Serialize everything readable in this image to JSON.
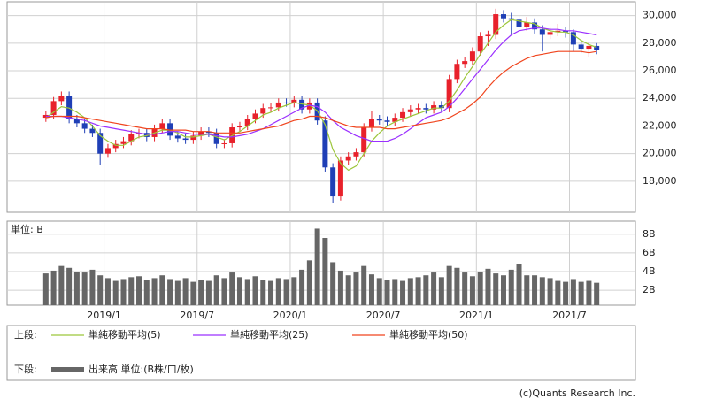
{
  "chart_data": [
    {
      "type": "candlestick",
      "up_color": "#e8212b",
      "down_color": "#1f3fb6",
      "open": [
        22600,
        22800,
        23800,
        24200,
        22500,
        22200,
        21800,
        21500,
        20000,
        20400,
        20700,
        20900,
        21400,
        21500,
        21200,
        21800,
        22200,
        21300,
        21100,
        21000,
        21300,
        21600,
        21500,
        20700,
        20750,
        21900,
        22000,
        22500,
        22900,
        23300,
        23350,
        23700,
        23650,
        23900,
        23200,
        23700,
        22400,
        19000,
        16900,
        19500,
        19800,
        20100,
        21900,
        22500,
        22400,
        22300,
        22600,
        23000,
        23200,
        23300,
        23200,
        23500,
        23300,
        25400,
        26500,
        26700,
        27400,
        28500,
        28600,
        30100,
        29800,
        29700,
        29200,
        29500,
        29000,
        28600,
        28800,
        28900,
        28800,
        27900,
        27600,
        27800
      ],
      "high": [
        23100,
        24100,
        24500,
        24500,
        22800,
        22500,
        22100,
        21800,
        20700,
        21000,
        21200,
        21700,
        21800,
        21800,
        22100,
        22500,
        22500,
        21600,
        21400,
        21600,
        21900,
        21900,
        21800,
        21050,
        22200,
        22300,
        22800,
        23200,
        23600,
        23650,
        24000,
        24000,
        24200,
        24200,
        24000,
        24000,
        22700,
        19300,
        19800,
        20100,
        20400,
        22200,
        23100,
        22800,
        22700,
        22900,
        23300,
        23500,
        23600,
        23600,
        23800,
        23800,
        25700,
        26800,
        27000,
        27700,
        28800,
        28900,
        30500,
        30400,
        30200,
        30000,
        29900,
        29800,
        29300,
        29100,
        29400,
        29200,
        29000,
        28200,
        28100,
        28000
      ],
      "low": [
        22300,
        22500,
        23500,
        22200,
        21900,
        21500,
        21200,
        19200,
        19700,
        20100,
        20400,
        20600,
        21100,
        20900,
        20900,
        21500,
        21000,
        20800,
        20700,
        20700,
        21000,
        21200,
        20400,
        20400,
        20450,
        21600,
        21700,
        22200,
        22600,
        23000,
        23050,
        23400,
        23350,
        22900,
        22900,
        22100,
        18700,
        16400,
        16600,
        19200,
        19500,
        19800,
        21600,
        22100,
        22000,
        22000,
        22300,
        22700,
        22900,
        22900,
        22900,
        23000,
        23000,
        25100,
        26200,
        26400,
        27100,
        27800,
        28300,
        29500,
        28600,
        28900,
        28900,
        28700,
        27400,
        28300,
        28500,
        28400,
        27400,
        27300,
        27000,
        27200
      ],
      "close": [
        22800,
        23800,
        24200,
        22500,
        22200,
        21800,
        21500,
        20000,
        20400,
        20700,
        20900,
        21400,
        21500,
        21200,
        21800,
        22200,
        21300,
        21100,
        21000,
        21300,
        21600,
        21500,
        20700,
        20750,
        21900,
        22000,
        22500,
        22900,
        23300,
        23350,
        23700,
        23650,
        23900,
        23200,
        23700,
        22400,
        19000,
        16900,
        19500,
        19800,
        20100,
        21900,
        22500,
        22400,
        22300,
        22600,
        23000,
        23200,
        23300,
        23200,
        23500,
        23300,
        25400,
        26500,
        26700,
        27400,
        28500,
        28600,
        30100,
        29800,
        29700,
        29200,
        29500,
        29000,
        28600,
        28800,
        28900,
        28800,
        27900,
        27600,
        27800,
        27500
      ],
      "lines": [
        {
          "name": "単純移動平均(5)",
          "color": "#9cc63a",
          "values": [
            22600,
            23000,
            23400,
            23300,
            23000,
            22600,
            22000,
            21300,
            20900,
            20600,
            20600,
            20900,
            21200,
            21300,
            21500,
            21700,
            21700,
            21500,
            21200,
            21200,
            21300,
            21400,
            21200,
            21000,
            21300,
            21600,
            22000,
            22400,
            22800,
            23000,
            23300,
            23500,
            23700,
            23600,
            23500,
            23100,
            22100,
            20300,
            19300,
            18800,
            19100,
            20000,
            20900,
            21500,
            22000,
            22300,
            22500,
            22700,
            22900,
            23100,
            23300,
            23300,
            23800,
            24600,
            25500,
            26300,
            27200,
            28000,
            28800,
            29300,
            29700,
            29600,
            29500,
            29400,
            29100,
            28900,
            28800,
            28800,
            28600,
            28200,
            27900,
            27700
          ]
        },
        {
          "name": "単純移動平均(25)",
          "color": "#9b30ff",
          "values": [
            22700,
            22700,
            22700,
            22600,
            22500,
            22400,
            22200,
            22000,
            21900,
            21800,
            21700,
            21600,
            21500,
            21400,
            21400,
            21500,
            21600,
            21600,
            21500,
            21400,
            21400,
            21400,
            21300,
            21200,
            21200,
            21300,
            21400,
            21600,
            21800,
            22100,
            22400,
            22700,
            23000,
            23300,
            23500,
            23400,
            23000,
            22400,
            21900,
            21600,
            21300,
            21100,
            20900,
            20900,
            20900,
            21100,
            21400,
            21800,
            22200,
            22600,
            22800,
            23000,
            23400,
            24000,
            24700,
            25400,
            26100,
            26800,
            27500,
            28100,
            28600,
            28900,
            29000,
            29100,
            29100,
            29000,
            29000,
            28900,
            28900,
            28800,
            28700,
            28600
          ]
        },
        {
          "name": "単純移動平均(50)",
          "color": "#f0451e",
          "values": [
            22600,
            22700,
            22700,
            22700,
            22700,
            22600,
            22500,
            22400,
            22300,
            22200,
            22100,
            22000,
            21900,
            21800,
            21800,
            21800,
            21700,
            21700,
            21700,
            21600,
            21600,
            21600,
            21500,
            21500,
            21500,
            21500,
            21600,
            21700,
            21800,
            21900,
            22000,
            22200,
            22400,
            22500,
            22700,
            22700,
            22600,
            22400,
            22200,
            22000,
            21900,
            21900,
            21900,
            21900,
            21800,
            21800,
            21900,
            22000,
            22100,
            22200,
            22300,
            22400,
            22600,
            22900,
            23200,
            23600,
            24100,
            24800,
            25400,
            25900,
            26300,
            26600,
            26900,
            27100,
            27200,
            27300,
            27400,
            27400,
            27400,
            27400,
            27300,
            27400
          ]
        }
      ],
      "xlim": [
        -5,
        76
      ],
      "xticks": [
        {
          "value": 7.5,
          "label": "2019/1"
        },
        {
          "value": 19.5,
          "label": "2019/7"
        },
        {
          "value": 31.5,
          "label": "2020/1"
        },
        {
          "value": 43.5,
          "label": "2020/7"
        },
        {
          "value": 55.5,
          "label": "2021/1"
        },
        {
          "value": 67.5,
          "label": "2021/7"
        }
      ],
      "ylim": [
        15750,
        31000
      ],
      "yticks": [
        {
          "value": 18000,
          "label": "18,000"
        },
        {
          "value": 20000,
          "label": "20,000"
        },
        {
          "value": 22000,
          "label": "22,000"
        },
        {
          "value": 24000,
          "label": "24,000"
        },
        {
          "value": 26000,
          "label": "26,000"
        },
        {
          "value": 28000,
          "label": "28,000"
        },
        {
          "value": 30000,
          "label": "30,000"
        }
      ],
      "grid": true
    },
    {
      "type": "bar",
      "name": "出来高 単位:(B株/口/枚)",
      "unit_label": "単位: B",
      "color": "#666666",
      "values": [
        3.8,
        4.1,
        4.6,
        4.4,
        4.0,
        3.9,
        4.2,
        3.6,
        3.3,
        3.0,
        3.2,
        3.4,
        3.5,
        3.1,
        3.3,
        3.6,
        3.2,
        3.0,
        3.3,
        2.9,
        3.1,
        3.0,
        3.6,
        3.3,
        3.9,
        3.4,
        3.2,
        3.5,
        3.1,
        3.0,
        3.3,
        3.2,
        3.4,
        4.2,
        5.2,
        8.6,
        7.6,
        5.0,
        4.1,
        3.6,
        3.9,
        4.6,
        3.7,
        3.3,
        3.1,
        3.2,
        3.0,
        3.3,
        3.4,
        3.6,
        3.9,
        3.4,
        4.6,
        4.4,
        3.9,
        3.5,
        4.0,
        4.3,
        3.8,
        3.6,
        4.2,
        4.8,
        3.6,
        3.6,
        3.4,
        3.3,
        3.0,
        2.9,
        3.2,
        2.9,
        3.0,
        2.8
      ],
      "ylim": [
        0.4,
        9.4
      ],
      "yticks": [
        {
          "value": 2,
          "label": "2B"
        },
        {
          "value": 4,
          "label": "4B"
        },
        {
          "value": 6,
          "label": "6B"
        },
        {
          "value": 8,
          "label": "8B"
        }
      ],
      "grid": true
    }
  ],
  "legend": {
    "upper_label": "上段:",
    "lower_label": "下段:"
  },
  "copyright": "(c)Quants Research Inc."
}
